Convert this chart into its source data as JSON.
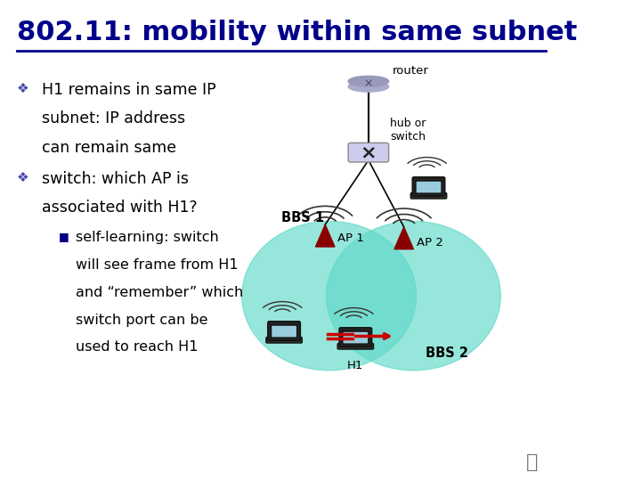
{
  "title": "802.11: mobility within same subnet",
  "title_color": "#00008B",
  "title_fontsize": 22,
  "bg_color": "#FFFFFF",
  "bullet1_line1": "H1 remains in same IP",
  "bullet1_line2": "subnet: IP address",
  "bullet1_line3": "can remain same",
  "bullet2_line1": "switch: which AP is",
  "bullet2_line2": "associated with H1?",
  "sub_bullet_lines": [
    "self-learning: switch",
    "will see frame from H1",
    "and “remember” which",
    "switch port can be",
    "used to reach H1"
  ],
  "text_color": "#000000",
  "text_fontsize": 12.5,
  "sub_text_fontsize": 11.5,
  "circle_color": "#5FD9C8",
  "circle_alpha": 0.65,
  "label_router": "router",
  "label_hub": "hub or\nswitch",
  "label_bbs1": "BBS 1",
  "label_bbs2": "BBS 2",
  "label_ap1": "AP 1",
  "label_ap2": "AP 2",
  "label_h1": "H1",
  "arrow_color": "#CC0000",
  "line_color": "#000000"
}
